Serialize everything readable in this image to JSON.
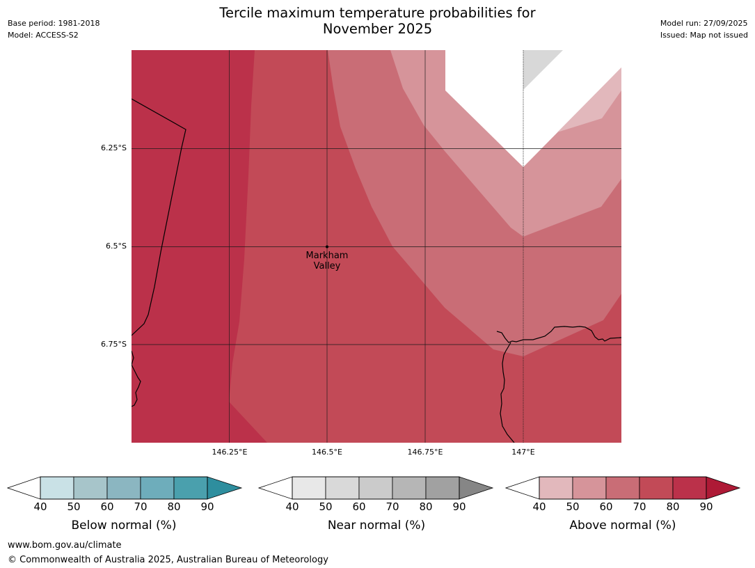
{
  "header": {
    "title_line1": "Tercile maximum temperature probabilities for",
    "title_line2": "November 2025",
    "base_period": "Base period: 1981-2018",
    "model": "Model: ACCESS-S2",
    "model_run": "Model run: 27/09/2025",
    "issued": "Issued: Map not issued"
  },
  "map": {
    "latitude_labels": [
      "6.25°S",
      "6.5°S",
      "6.75°S"
    ],
    "longitude_labels": [
      "146.25°E",
      "146.5°E",
      "146.75°E",
      "147°E"
    ],
    "place": {
      "name_line1": "Markham",
      "name_line2": "Valley"
    },
    "colors": {
      "above_80_90": "#bb314a",
      "above_70_80": "#c24a57",
      "above_60_70": "#c96d76",
      "above_50_60": "#d6949a",
      "above_40_50": "#e2b8bc",
      "near_50_60": "#d8d8d8",
      "no_data": "#ffffff"
    }
  },
  "legends": [
    {
      "title": "Below normal (%)",
      "ticks": [
        "40",
        "50",
        "60",
        "70",
        "80",
        "90"
      ],
      "colors": [
        "#c9e1e6",
        "#a7c5ca",
        "#8bb6c1",
        "#6eadbb",
        "#4aa0ad",
        "#2e8e9e"
      ]
    },
    {
      "title": "Near normal (%)",
      "ticks": [
        "40",
        "50",
        "60",
        "70",
        "80",
        "90"
      ],
      "colors": [
        "#e8e8e8",
        "#d9d9d9",
        "#cbcbcb",
        "#b6b6b6",
        "#a1a1a1",
        "#868686"
      ]
    },
    {
      "title": "Above normal (%)",
      "ticks": [
        "40",
        "50",
        "60",
        "70",
        "80",
        "90"
      ],
      "colors": [
        "#e2b8bc",
        "#d6949a",
        "#c96d76",
        "#c24a57",
        "#bb314a",
        "#ae1a36"
      ]
    }
  ],
  "footer": {
    "url": "www.bom.gov.au/climate",
    "copyright": "© Commonwealth of Australia 2025, Australian Bureau of Meteorology"
  }
}
